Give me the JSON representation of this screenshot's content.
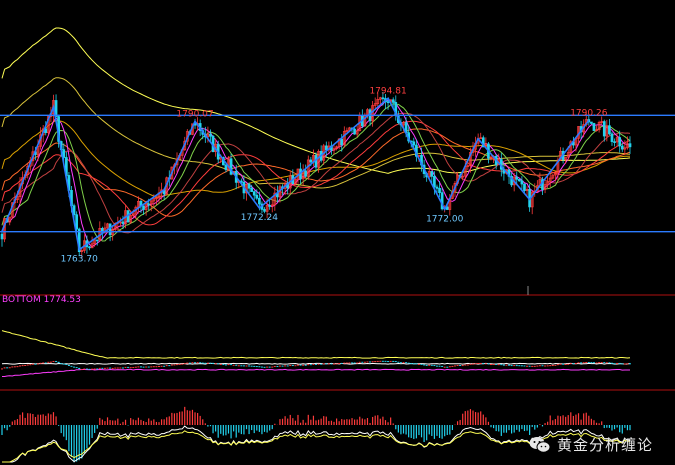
{
  "colors": {
    "background": "#000000",
    "channel": "#2b7bff",
    "zigzag": "#2b7bff",
    "candle_up": "#ff3b3b",
    "candle_down": "#22d3ee",
    "peak_label": "#ff4040",
    "trough_label": "#6ec8ff",
    "bottom_label": "#ff40ff",
    "separator": "#b01010",
    "ma_colors": [
      "#ffff55",
      "#d8c23a",
      "#d9a000",
      "#ff6a2a",
      "#ff3d3d",
      "#c04040",
      "#7fd14a",
      "#ff3dff"
    ]
  },
  "indicator": {
    "bottom_text": "BOTTOM 1774.53"
  },
  "watermark": {
    "icon": "wechat-icon",
    "text": "黄金分析缠论"
  },
  "chart_data": {
    "type": "candlestick",
    "title": "",
    "xlabel": "",
    "ylabel": "",
    "grid": false,
    "ylim": [
      1755,
      1815
    ],
    "channel_lines": [
      1791.3,
      1767.4
    ],
    "peaks": [
      {
        "bar": 75,
        "value": 1790.07,
        "label": "1790.07"
      },
      {
        "bar": 150,
        "value": 1794.81,
        "label": "1794.81"
      },
      {
        "bar": 228,
        "value": 1790.26,
        "label": "1790.26"
      }
    ],
    "troughs": [
      {
        "bar": 30,
        "value": 1763.7,
        "label": "1763.70"
      },
      {
        "bar": 100,
        "value": 1772.24,
        "label": "1772.24"
      },
      {
        "bar": 172,
        "value": 1772.0,
        "label": "1772.00"
      }
    ],
    "zigzag": [
      {
        "bar": 0,
        "value": 1767.5
      },
      {
        "bar": 20,
        "value": 1793.0
      },
      {
        "bar": 30,
        "value": 1763.7
      },
      {
        "bar": 63,
        "value": 1776.0
      },
      {
        "bar": 75,
        "value": 1790.07
      },
      {
        "bar": 100,
        "value": 1772.24
      },
      {
        "bar": 150,
        "value": 1794.81
      },
      {
        "bar": 172,
        "value": 1772.0
      },
      {
        "bar": 185,
        "value": 1786.5
      },
      {
        "bar": 205,
        "value": 1774.0
      },
      {
        "bar": 228,
        "value": 1790.26
      }
    ],
    "bars": 245
  }
}
